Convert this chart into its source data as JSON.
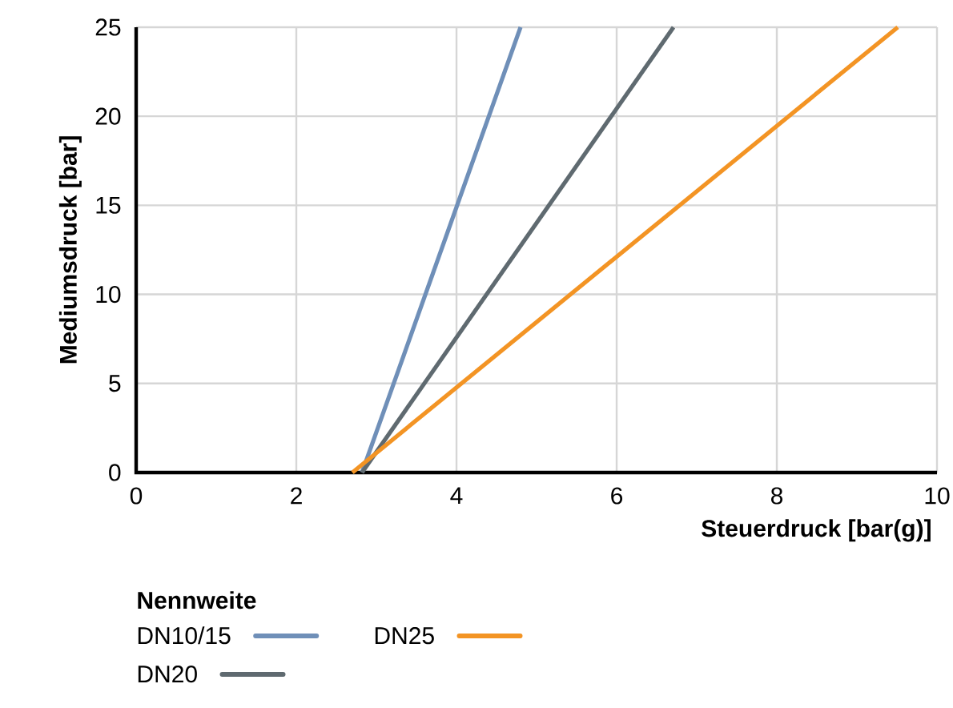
{
  "chart_data": {
    "type": "line",
    "xlabel": "Steuerdruck [bar(g)]",
    "ylabel": "Mediumsdruck [bar]",
    "legend_title": "Nennweite",
    "series": [
      {
        "name": "DN10/15",
        "color": "#6f8fb8",
        "x": [
          2.82,
          4.8
        ],
        "values": [
          0,
          25
        ]
      },
      {
        "name": "DN20",
        "color": "#5f6a70",
        "x": [
          2.82,
          6.71
        ],
        "values": [
          0,
          25
        ]
      },
      {
        "name": "DN25",
        "color": "#f39424",
        "x": [
          2.7,
          9.51
        ],
        "values": [
          0,
          25
        ]
      }
    ],
    "xlim": [
      0,
      10
    ],
    "ylim": [
      0,
      25
    ],
    "xticks": [
      0,
      2,
      4,
      6,
      8,
      10
    ],
    "yticks": [
      0,
      5,
      10,
      15,
      20,
      25
    ],
    "grid": true,
    "legend": "bottom left",
    "marker": "none",
    "line_style": "solid"
  }
}
